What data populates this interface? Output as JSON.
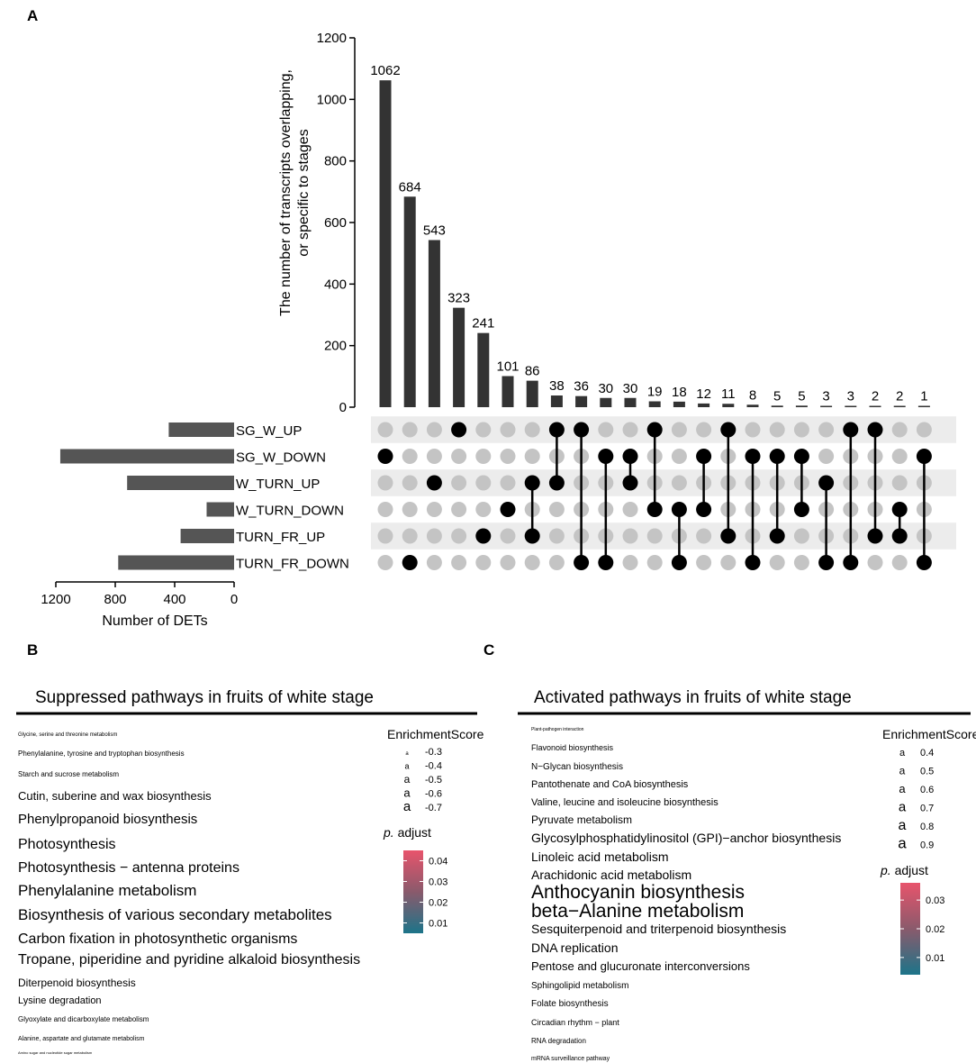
{
  "panel_labels": {
    "a": "A",
    "b": "B",
    "c": "C"
  },
  "chart_data": [
    {
      "type": "bar",
      "subtype": "upset",
      "title": "",
      "ylabel_line1": "The number of transcripts overlapping,",
      "ylabel_line2": "or specific to stages",
      "ylim": [
        0,
        1200
      ],
      "yticks": [
        0,
        200,
        400,
        600,
        800,
        1000,
        1200
      ],
      "sets": [
        "SG_W_UP",
        "SG_W_DOWN",
        "W_TURN_UP",
        "W_TURN_DOWN",
        "TURN_FR_UP",
        "TURN_FR_DOWN"
      ],
      "set_sizes": [
        440,
        1170,
        720,
        185,
        360,
        780
      ],
      "set_size_xlabel": "Number of DETs",
      "set_size_ticks": [
        1200,
        800,
        400,
        0
      ],
      "set_size_xlim": [
        0,
        1200
      ],
      "intersections": [
        {
          "value": 1062,
          "sets": [
            1
          ]
        },
        {
          "value": 684,
          "sets": [
            5
          ]
        },
        {
          "value": 543,
          "sets": [
            2
          ]
        },
        {
          "value": 323,
          "sets": [
            0
          ]
        },
        {
          "value": 241,
          "sets": [
            4
          ]
        },
        {
          "value": 101,
          "sets": [
            3
          ]
        },
        {
          "value": 86,
          "sets": [
            2,
            4
          ]
        },
        {
          "value": 38,
          "sets": [
            0,
            2
          ]
        },
        {
          "value": 36,
          "sets": [
            0,
            5
          ]
        },
        {
          "value": 30,
          "sets": [
            1,
            5
          ]
        },
        {
          "value": 30,
          "sets": [
            1,
            2
          ]
        },
        {
          "value": 19,
          "sets": [
            0,
            3
          ]
        },
        {
          "value": 18,
          "sets": [
            3,
            5
          ]
        },
        {
          "value": 12,
          "sets": [
            1,
            3
          ]
        },
        {
          "value": 11,
          "sets": [
            0,
            4
          ]
        },
        {
          "value": 8,
          "sets": [
            1,
            5
          ]
        },
        {
          "value": 5,
          "sets": [
            1,
            4
          ]
        },
        {
          "value": 5,
          "sets": [
            1,
            3
          ]
        },
        {
          "value": 3,
          "sets": [
            2,
            5
          ]
        },
        {
          "value": 3,
          "sets": [
            0,
            5
          ]
        },
        {
          "value": 2,
          "sets": [
            0,
            4
          ]
        },
        {
          "value": 2,
          "sets": [
            3,
            4
          ]
        },
        {
          "value": 1,
          "sets": [
            1,
            5
          ]
        }
      ]
    },
    {
      "type": "wordcloud",
      "title": "Suppressed pathways in fruits of white stage",
      "legend_size_title": "EnrichmentScore",
      "legend_size_values": [
        "-0.3",
        "-0.4",
        "-0.5",
        "-0.6",
        "-0.7"
      ],
      "legend_color_title_italic": "p.",
      "legend_color_title": " adjust",
      "legend_color_ticks": [
        "0.04",
        "0.03",
        "0.02",
        "0.01"
      ],
      "legend_color_range": [
        0.005,
        0.045
      ],
      "colors": {
        "low": "#1c7489",
        "high": "#e8546c"
      },
      "terms": [
        {
          "label": "Glycine, serine and threonine metabolism",
          "size": 6,
          "color": "#d2607a"
        },
        {
          "label": "Phenylalanine, tyrosine and tryptophan biosynthesis",
          "size": 8,
          "color": "#b8536b"
        },
        {
          "label": "Starch and sucrose metabolism",
          "size": 8,
          "color": "#2c6f82"
        },
        {
          "label": "Cutin, suberine and wax biosynthesis",
          "size": 13,
          "color": "#2c6f82"
        },
        {
          "label": "Phenylpropanoid biosynthesis",
          "size": 15,
          "color": "#1a7587"
        },
        {
          "label": "Photosynthesis",
          "size": 16,
          "color": "#1a7587"
        },
        {
          "label": "Photosynthesis − antenna proteins",
          "size": 16,
          "color": "#1a7587"
        },
        {
          "label": "Phenylalanine metabolism",
          "size": 17,
          "color": "#1a7587"
        },
        {
          "label": "Biosynthesis of various secondary metabolites",
          "size": 17,
          "color": "#6e6468"
        },
        {
          "label": "Carbon fixation in photosynthetic organisms",
          "size": 16,
          "color": "#1a7587"
        },
        {
          "label": "Tropane, piperidine and pyridine alkaloid biosynthesis",
          "size": 16,
          "color": "#8a5c6a"
        },
        {
          "label": "Diterpenoid biosynthesis",
          "size": 12,
          "color": "#2c6f82"
        },
        {
          "label": "Lysine degradation",
          "size": 11,
          "color": "#c8506a"
        },
        {
          "label": "Glyoxylate and dicarboxylate metabolism",
          "size": 8,
          "color": "#5b5b5b"
        },
        {
          "label": "Alanine, aspartate and glutamate metabolism",
          "size": 7,
          "color": "#e03a55"
        },
        {
          "label": "Amino sugar and nucleotide sugar metabolism",
          "size": 4,
          "color": "#a06a78"
        }
      ]
    },
    {
      "type": "wordcloud",
      "title": "Activated pathways in fruits of white stage",
      "legend_size_title": "EnrichmentScore",
      "legend_size_values": [
        "0.4",
        "0.5",
        "0.6",
        "0.7",
        "0.8",
        "0.9"
      ],
      "legend_color_title_italic": "p.",
      "legend_color_title": " adjust",
      "legend_color_ticks": [
        "0.03",
        "0.02",
        "0.01"
      ],
      "legend_color_range": [
        0.004,
        0.036
      ],
      "colors": {
        "low": "#1c7489",
        "high": "#e8546c"
      },
      "terms": [
        {
          "label": "Plant-pathogen interaction",
          "size": 5,
          "color": "#d2607a"
        },
        {
          "label": "Flavonoid biosynthesis",
          "size": 9,
          "color": "#2c6f82"
        },
        {
          "label": "N−Glycan biosynthesis",
          "size": 10,
          "color": "#1a7587"
        },
        {
          "label": "Pantothenate and CoA biosynthesis",
          "size": 11,
          "color": "#c0566d"
        },
        {
          "label": "Valine, leucine and isoleucine biosynthesis",
          "size": 11,
          "color": "#c8506a"
        },
        {
          "label": "Pyruvate metabolism",
          "size": 12,
          "color": "#1a7587"
        },
        {
          "label": "Glycosylphosphatidylinositol (GPI)−anchor biosynthesis",
          "size": 14,
          "color": "#b8536b"
        },
        {
          "label": "Linoleic acid metabolism",
          "size": 14,
          "color": "#5b5b5b"
        },
        {
          "label": "Arachidonic acid metabolism",
          "size": 14,
          "color": "#1a7587"
        },
        {
          "label": "Anthocyanin biosynthesis",
          "size": 21,
          "color": "#1a7587"
        },
        {
          "label": "beta−Alanine metabolism",
          "size": 21,
          "color": "#1a7587"
        },
        {
          "label": "Sesquiterpenoid and triterpenoid biosynthesis",
          "size": 14,
          "color": "#4f6670"
        },
        {
          "label": "DNA replication",
          "size": 14,
          "color": "#1a7587"
        },
        {
          "label": "Pentose and glucuronate interconversions",
          "size": 13,
          "color": "#1a7587"
        },
        {
          "label": "Sphingolipid metabolism",
          "size": 10,
          "color": "#2c6f82"
        },
        {
          "label": "Folate biosynthesis",
          "size": 10,
          "color": "#e03a55"
        },
        {
          "label": "Circadian rhythm − plant",
          "size": 9,
          "color": "#b8536b"
        },
        {
          "label": "RNA degradation",
          "size": 8,
          "color": "#1a7587"
        },
        {
          "label": "mRNA surveillance pathway",
          "size": 7,
          "color": "#2c6f82"
        }
      ]
    }
  ]
}
